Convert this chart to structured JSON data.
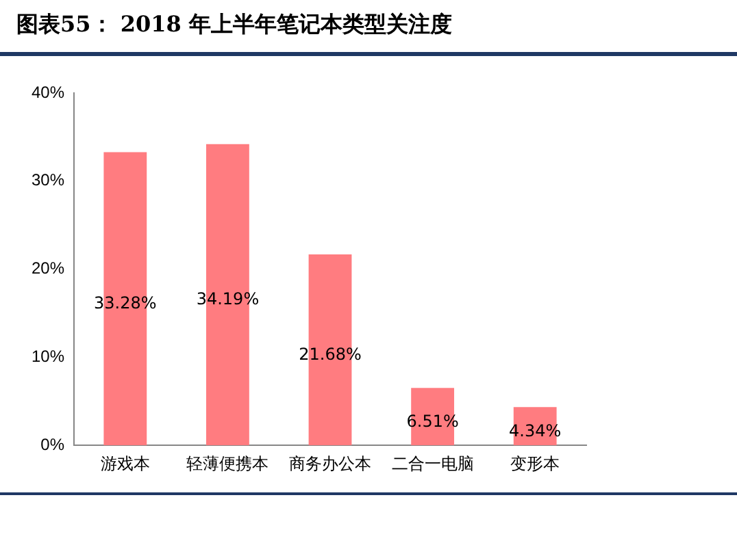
{
  "chart_data": {
    "type": "bar",
    "title": "图表55： 2018 年上半年笔记本类型关注度",
    "categories": [
      "游戏本",
      "轻薄便携本",
      "商务办公本",
      "二合一电脑",
      "变形本"
    ],
    "values": [
      33.28,
      34.19,
      21.68,
      6.51,
      4.34
    ],
    "value_labels": [
      "33.28%",
      "34.19%",
      "21.68%",
      "6.51%",
      "4.34%"
    ],
    "color": "#ff7c80",
    "ylim": [
      0,
      40
    ],
    "yticks": [
      {
        "value": 0,
        "label": "0%"
      },
      {
        "value": 10,
        "label": "10%"
      },
      {
        "value": 20,
        "label": "20%"
      },
      {
        "value": 30,
        "label": "30%"
      },
      {
        "value": 40,
        "label": "40%"
      }
    ],
    "grid": false,
    "legend": false
  }
}
